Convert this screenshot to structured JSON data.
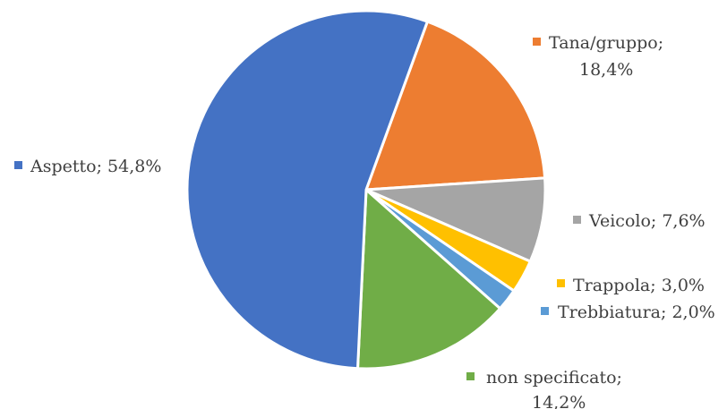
{
  "chart_data": {
    "type": "pie",
    "title": "",
    "start_angle_deg": 20,
    "direction": "clockwise",
    "slices": [
      {
        "name": "Tana/gruppo",
        "value": 18.4,
        "label": "18,4%",
        "color": "#ED7D31",
        "label_lines": [
          "Tana/gruppo;",
          "18,4%"
        ]
      },
      {
        "name": "Veicolo",
        "value": 7.6,
        "label": "7,6%",
        "color": "#A5A5A5",
        "label_lines": [
          "Veicolo; 7,6%"
        ]
      },
      {
        "name": "Trappola",
        "value": 3.0,
        "label": "3,0%",
        "color": "#FFC000",
        "label_lines": [
          "Trappola; 3,0%"
        ]
      },
      {
        "name": "Trebbiatura",
        "value": 2.0,
        "label": "2,0%",
        "color": "#5B9BD5",
        "label_lines": [
          "Trebbiatura; 2,0%"
        ]
      },
      {
        "name": "non specificato",
        "value": 14.2,
        "label": "14,2%",
        "color": "#70AD47",
        "label_lines": [
          "non specificato;",
          "14,2%"
        ]
      },
      {
        "name": "Aspetto",
        "value": 54.8,
        "label": "54,8%",
        "color": "#4472C4",
        "label_lines": [
          "Aspetto; 54,8%"
        ]
      }
    ]
  }
}
